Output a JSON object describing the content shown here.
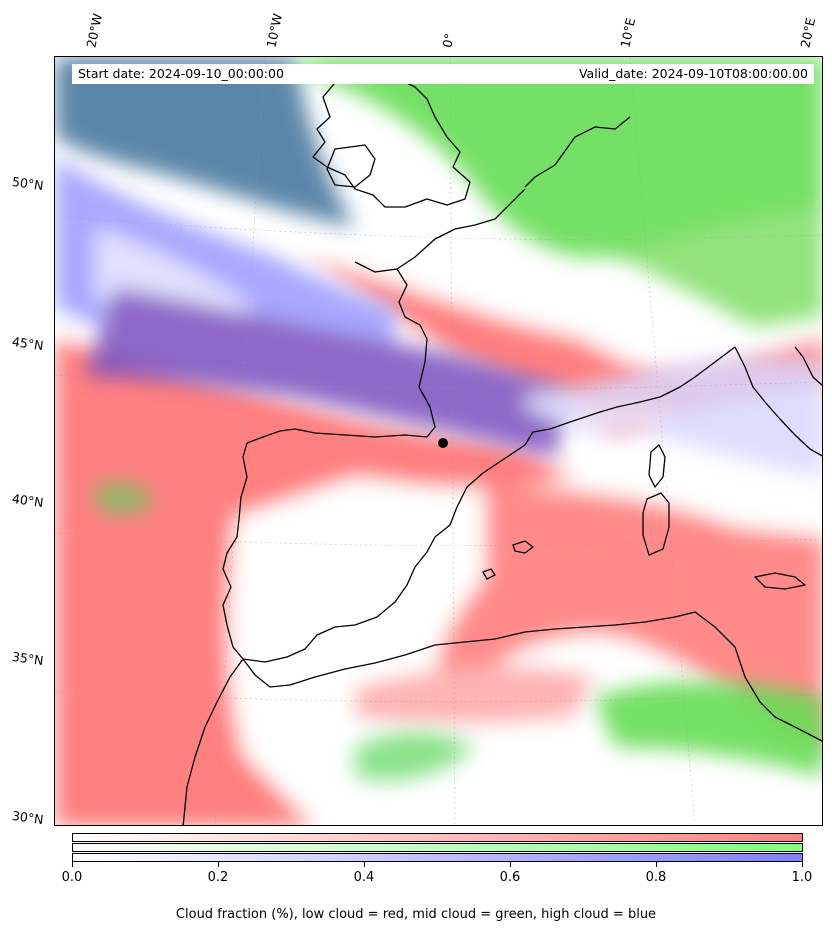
{
  "header": {
    "start_date": "Start date: 2024-09-10_00:00:00",
    "valid_date": "Valid_date: 2024-09-10T08:00:00.00"
  },
  "longitude_labels": [
    "20°W",
    "10°W",
    "0°",
    "10°E",
    "20°E"
  ],
  "latitude_labels": [
    "50°N",
    "45°N",
    "40°N",
    "35°N",
    "30°N"
  ],
  "colorbar": {
    "ticks": [
      "0.0",
      "0.2",
      "0.4",
      "0.6",
      "0.8",
      "1.0"
    ],
    "bands": [
      {
        "name": "low cloud",
        "color": "#ff8080"
      },
      {
        "name": "mid cloud",
        "color": "#80ff80"
      },
      {
        "name": "high cloud",
        "color": "#8080ff"
      }
    ],
    "caption": "Cloud fraction (%), low cloud = red, mid cloud = green, high cloud = blue"
  },
  "colors": {
    "low_cloud": "#ff8080",
    "mid_cloud": "#80ff80",
    "high_cloud": "#8080ff",
    "overlap_purple": "#8a5cc8",
    "overlap_teal": "#4a7f9a",
    "coastline": "#000000"
  }
}
